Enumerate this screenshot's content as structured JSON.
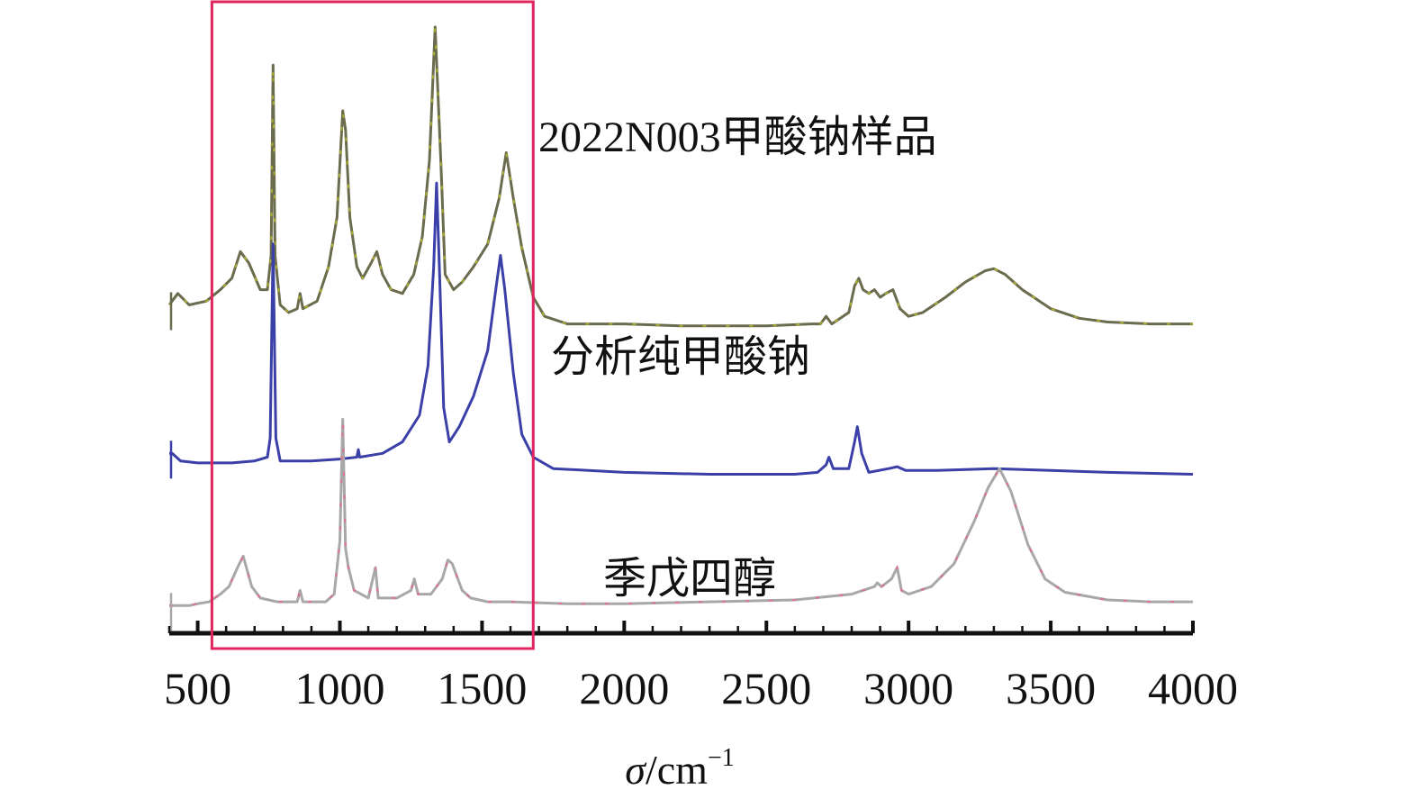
{
  "chart_data": {
    "type": "line",
    "xlabel": "σ/cm⁻¹",
    "xlabel_parts": {
      "symbol": "σ",
      "unit": "/cm",
      "exponent": "−1"
    },
    "ylabel": "",
    "xlim": [
      400,
      4000
    ],
    "x_ticks": [
      500,
      1000,
      1500,
      2000,
      2500,
      3000,
      3500,
      4000
    ],
    "x_tick_labels": [
      "500",
      "1000",
      "1500",
      "2000",
      "2500",
      "3000",
      "3500",
      "4000"
    ],
    "grid": false,
    "highlight_region": {
      "x": [
        550,
        1680
      ],
      "color": "#e0245e"
    },
    "series": [
      {
        "name": "2022N003甲酸钠样品",
        "color": "#6b6b4e",
        "accent_color": "#b5b82a",
        "baseline": 0.77,
        "points": [
          [
            400,
            0.82
          ],
          [
            430,
            0.85
          ],
          [
            470,
            0.82
          ],
          [
            530,
            0.83
          ],
          [
            580,
            0.86
          ],
          [
            620,
            0.89
          ],
          [
            650,
            0.96
          ],
          [
            680,
            0.93
          ],
          [
            720,
            0.86
          ],
          [
            745,
            0.86
          ],
          [
            758,
            0.95
          ],
          [
            765,
            1.45
          ],
          [
            772,
            0.95
          ],
          [
            790,
            0.82
          ],
          [
            820,
            0.8
          ],
          [
            850,
            0.81
          ],
          [
            860,
            0.85
          ],
          [
            870,
            0.81
          ],
          [
            920,
            0.83
          ],
          [
            960,
            0.92
          ],
          [
            990,
            1.05
          ],
          [
            1010,
            1.33
          ],
          [
            1020,
            1.28
          ],
          [
            1035,
            1.05
          ],
          [
            1060,
            0.92
          ],
          [
            1080,
            0.89
          ],
          [
            1110,
            0.93
          ],
          [
            1130,
            0.96
          ],
          [
            1150,
            0.9
          ],
          [
            1180,
            0.86
          ],
          [
            1220,
            0.85
          ],
          [
            1260,
            0.9
          ],
          [
            1290,
            1.0
          ],
          [
            1315,
            1.2
          ],
          [
            1335,
            1.55
          ],
          [
            1355,
            1.2
          ],
          [
            1370,
            0.9
          ],
          [
            1400,
            0.86
          ],
          [
            1430,
            0.88
          ],
          [
            1470,
            0.92
          ],
          [
            1520,
            0.98
          ],
          [
            1560,
            1.1
          ],
          [
            1585,
            1.22
          ],
          [
            1610,
            1.1
          ],
          [
            1640,
            0.97
          ],
          [
            1680,
            0.84
          ],
          [
            1720,
            0.79
          ],
          [
            1800,
            0.77
          ],
          [
            2000,
            0.77
          ],
          [
            2200,
            0.765
          ],
          [
            2500,
            0.765
          ],
          [
            2660,
            0.77
          ],
          [
            2690,
            0.77
          ],
          [
            2710,
            0.79
          ],
          [
            2730,
            0.77
          ],
          [
            2790,
            0.8
          ],
          [
            2810,
            0.87
          ],
          [
            2825,
            0.89
          ],
          [
            2840,
            0.86
          ],
          [
            2860,
            0.85
          ],
          [
            2880,
            0.86
          ],
          [
            2900,
            0.84
          ],
          [
            2920,
            0.85
          ],
          [
            2945,
            0.86
          ],
          [
            2970,
            0.81
          ],
          [
            3000,
            0.79
          ],
          [
            3050,
            0.8
          ],
          [
            3130,
            0.84
          ],
          [
            3200,
            0.88
          ],
          [
            3270,
            0.91
          ],
          [
            3300,
            0.915
          ],
          [
            3340,
            0.9
          ],
          [
            3400,
            0.86
          ],
          [
            3500,
            0.81
          ],
          [
            3600,
            0.785
          ],
          [
            3700,
            0.775
          ],
          [
            3850,
            0.77
          ],
          [
            4000,
            0.77
          ]
        ]
      },
      {
        "name": "分析纯甲酸钠",
        "color": "#3b3fa8",
        "baseline": 0.4,
        "points": [
          [
            400,
            0.43
          ],
          [
            410,
            0.43
          ],
          [
            440,
            0.41
          ],
          [
            500,
            0.405
          ],
          [
            560,
            0.405
          ],
          [
            620,
            0.405
          ],
          [
            700,
            0.41
          ],
          [
            745,
            0.42
          ],
          [
            755,
            0.47
          ],
          [
            765,
            0.98
          ],
          [
            775,
            0.47
          ],
          [
            790,
            0.41
          ],
          [
            900,
            0.41
          ],
          [
            1000,
            0.415
          ],
          [
            1060,
            0.42
          ],
          [
            1065,
            0.44
          ],
          [
            1070,
            0.42
          ],
          [
            1150,
            0.43
          ],
          [
            1220,
            0.46
          ],
          [
            1280,
            0.53
          ],
          [
            1310,
            0.66
          ],
          [
            1330,
            0.92
          ],
          [
            1340,
            1.14
          ],
          [
            1350,
            0.92
          ],
          [
            1365,
            0.55
          ],
          [
            1385,
            0.46
          ],
          [
            1420,
            0.5
          ],
          [
            1470,
            0.58
          ],
          [
            1520,
            0.7
          ],
          [
            1550,
            0.87
          ],
          [
            1565,
            0.95
          ],
          [
            1580,
            0.86
          ],
          [
            1610,
            0.64
          ],
          [
            1640,
            0.48
          ],
          [
            1680,
            0.42
          ],
          [
            1750,
            0.39
          ],
          [
            2000,
            0.38
          ],
          [
            2300,
            0.375
          ],
          [
            2600,
            0.375
          ],
          [
            2680,
            0.38
          ],
          [
            2710,
            0.4
          ],
          [
            2720,
            0.42
          ],
          [
            2735,
            0.39
          ],
          [
            2790,
            0.39
          ],
          [
            2810,
            0.46
          ],
          [
            2820,
            0.5
          ],
          [
            2835,
            0.43
          ],
          [
            2860,
            0.38
          ],
          [
            2930,
            0.39
          ],
          [
            2960,
            0.395
          ],
          [
            2990,
            0.385
          ],
          [
            3100,
            0.385
          ],
          [
            3300,
            0.39
          ],
          [
            3500,
            0.385
          ],
          [
            3700,
            0.38
          ],
          [
            4000,
            0.375
          ]
        ]
      },
      {
        "name": "季戊四醇",
        "color": "#a8a8a8",
        "accent_color": "#e56b8a",
        "baseline": 0.0,
        "points": [
          [
            400,
            0.03
          ],
          [
            470,
            0.03
          ],
          [
            500,
            0.035
          ],
          [
            540,
            0.04
          ],
          [
            580,
            0.06
          ],
          [
            610,
            0.08
          ],
          [
            640,
            0.13
          ],
          [
            660,
            0.16
          ],
          [
            690,
            0.08
          ],
          [
            720,
            0.05
          ],
          [
            780,
            0.04
          ],
          [
            850,
            0.04
          ],
          [
            860,
            0.07
          ],
          [
            870,
            0.04
          ],
          [
            950,
            0.04
          ],
          [
            980,
            0.06
          ],
          [
            1000,
            0.2
          ],
          [
            1010,
            0.52
          ],
          [
            1020,
            0.18
          ],
          [
            1030,
            0.13
          ],
          [
            1050,
            0.07
          ],
          [
            1100,
            0.05
          ],
          [
            1125,
            0.13
          ],
          [
            1135,
            0.05
          ],
          [
            1200,
            0.05
          ],
          [
            1250,
            0.07
          ],
          [
            1262,
            0.1
          ],
          [
            1275,
            0.06
          ],
          [
            1320,
            0.06
          ],
          [
            1360,
            0.1
          ],
          [
            1380,
            0.15
          ],
          [
            1395,
            0.14
          ],
          [
            1410,
            0.11
          ],
          [
            1430,
            0.07
          ],
          [
            1460,
            0.05
          ],
          [
            1520,
            0.04
          ],
          [
            1600,
            0.04
          ],
          [
            1800,
            0.035
          ],
          [
            2000,
            0.035
          ],
          [
            2300,
            0.04
          ],
          [
            2600,
            0.045
          ],
          [
            2800,
            0.06
          ],
          [
            2880,
            0.08
          ],
          [
            2890,
            0.09
          ],
          [
            2905,
            0.08
          ],
          [
            2940,
            0.1
          ],
          [
            2960,
            0.13
          ],
          [
            2975,
            0.07
          ],
          [
            3000,
            0.06
          ],
          [
            3080,
            0.08
          ],
          [
            3160,
            0.14
          ],
          [
            3230,
            0.25
          ],
          [
            3280,
            0.34
          ],
          [
            3320,
            0.39
          ],
          [
            3360,
            0.33
          ],
          [
            3420,
            0.19
          ],
          [
            3480,
            0.1
          ],
          [
            3550,
            0.065
          ],
          [
            3700,
            0.045
          ],
          [
            3850,
            0.04
          ],
          [
            4000,
            0.04
          ]
        ]
      }
    ]
  }
}
